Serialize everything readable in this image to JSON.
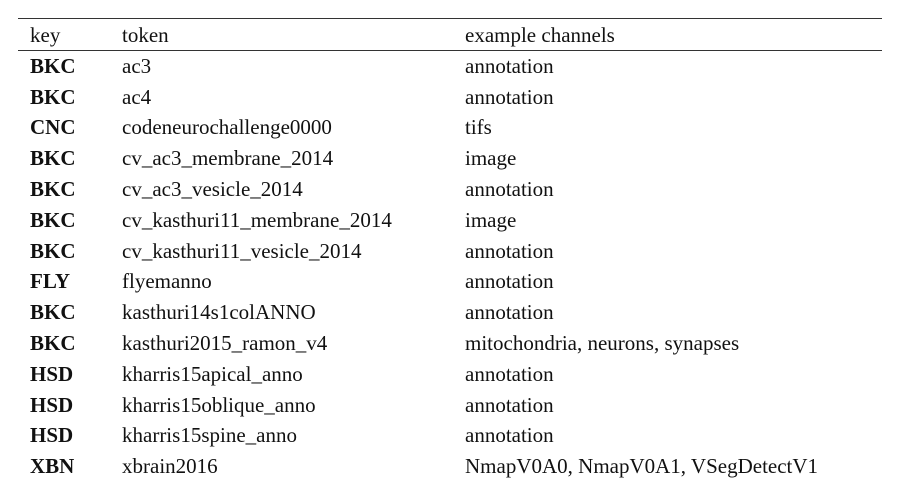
{
  "columns": {
    "key": "key",
    "token": "token",
    "channels": "example channels"
  },
  "rows": [
    {
      "key": "BKC",
      "token": "ac3",
      "channels": "annotation"
    },
    {
      "key": "BKC",
      "token": "ac4",
      "channels": "annotation"
    },
    {
      "key": "CNC",
      "token": "codeneurochallenge0000",
      "channels": "tifs"
    },
    {
      "key": "BKC",
      "token": "cv_ac3_membrane_2014",
      "channels": "image"
    },
    {
      "key": "BKC",
      "token": "cv_ac3_vesicle_2014",
      "channels": "annotation"
    },
    {
      "key": "BKC",
      "token": "cv_kasthuri11_membrane_2014",
      "channels": "image"
    },
    {
      "key": "BKC",
      "token": "cv_kasthuri11_vesicle_2014",
      "channels": "annotation"
    },
    {
      "key": "FLY",
      "token": "flyemanno",
      "channels": "annotation"
    },
    {
      "key": "BKC",
      "token": "kasthuri14s1colANNO",
      "channels": "annotation"
    },
    {
      "key": "BKC",
      "token": "kasthuri2015_ramon_v4",
      "channels": "mitochondria, neurons, synapses"
    },
    {
      "key": "HSD",
      "token": "kharris15apical_anno",
      "channels": "annotation"
    },
    {
      "key": "HSD",
      "token": "kharris15oblique_anno",
      "channels": "annotation"
    },
    {
      "key": "HSD",
      "token": "kharris15spine_anno",
      "channels": "annotation"
    },
    {
      "key": "XBN",
      "token": "xbrain2016",
      "channels": "NmapV0A0, NmapV0A1, VSegDetectV1"
    }
  ]
}
